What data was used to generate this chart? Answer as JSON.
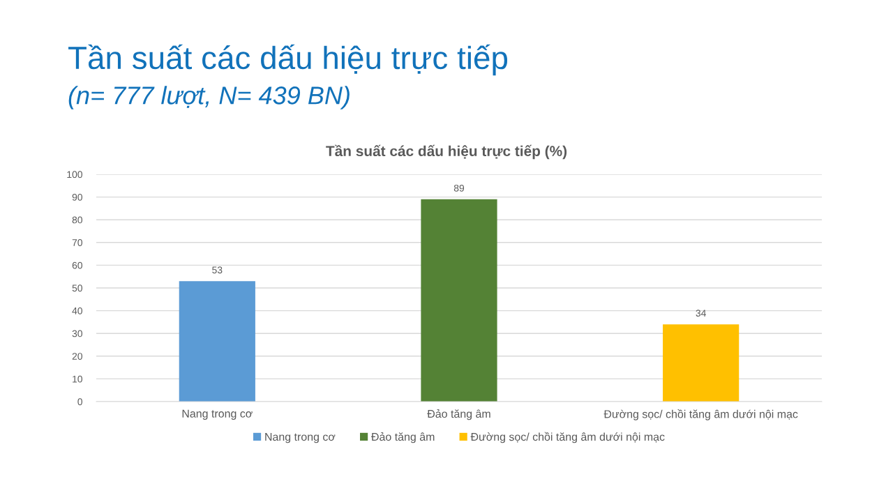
{
  "chart_data": {
    "type": "bar",
    "title": "Tần suất các dấu hiệu trực tiếp",
    "subtitle": "(n= 777 lượt, N= 439 BN)",
    "annotations": [
      "Tần suất các dấu hiệu trực tiếp (%)"
    ],
    "categories": [
      "Nang trong cơ",
      "Đảo tăng âm",
      "Đường sọc/ chồi tăng âm dưới nội mạc"
    ],
    "series": [
      {
        "name": "Nang trong cơ",
        "color": "#5b9bd5",
        "values": [
          53,
          null,
          null
        ]
      },
      {
        "name": "Đảo tăng âm",
        "color": "#548235",
        "values": [
          null,
          89,
          null
        ]
      },
      {
        "name": "Đường sọc/ chồi tăng âm dưới nội mạc",
        "color": "#ffc000",
        "values": [
          null,
          null,
          34
        ]
      }
    ],
    "ylim": [
      0,
      100
    ],
    "yticks": [
      0,
      10,
      20,
      30,
      40,
      50,
      60,
      70,
      80,
      90,
      100
    ],
    "grid": "y",
    "legend": "bottom",
    "data_labels": true
  }
}
